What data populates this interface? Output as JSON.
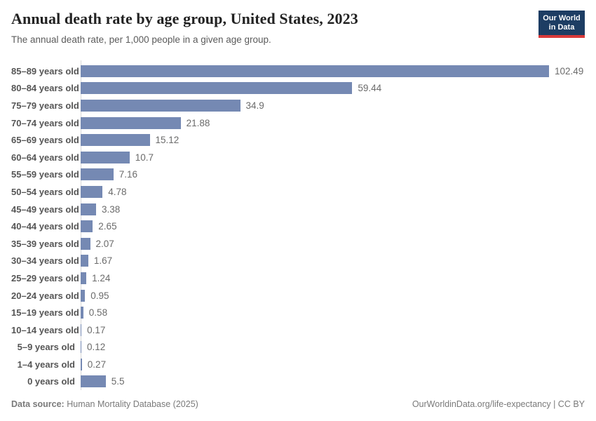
{
  "header": {
    "title": "Annual death rate by age group, United States, 2023",
    "subtitle": "The annual death rate, per 1,000 people in a given age group.",
    "logo": {
      "line1": "Our World",
      "line2": "in Data",
      "background": "#1d3d63",
      "accent": "#d93a3a"
    }
  },
  "chart_data": {
    "type": "bar",
    "orientation": "horizontal",
    "title": "Annual death rate by age group, United States, 2023",
    "subtitle": "The annual death rate, per 1,000 people in a given age group.",
    "categories": [
      "85–89 years old",
      "80–84 years old",
      "75–79 years old",
      "70–74 years old",
      "65–69 years old",
      "60–64 years old",
      "55–59 years old",
      "50–54 years old",
      "45–49 years old",
      "40–44 years old",
      "35–39 years old",
      "30–34 years old",
      "25–29 years old",
      "20–24 years old",
      "15–19 years old",
      "10–14 years old",
      "5–9 years old",
      "1–4 years old",
      "0 years old"
    ],
    "values": [
      102.49,
      59.44,
      34.9,
      21.88,
      15.12,
      10.7,
      7.16,
      4.78,
      3.38,
      2.65,
      2.07,
      1.67,
      1.24,
      0.95,
      0.58,
      0.17,
      0.12,
      0.27,
      5.5
    ],
    "value_labels": [
      "102.49",
      "59.44",
      "34.9",
      "21.88",
      "15.12",
      "10.7",
      "7.16",
      "4.78",
      "3.38",
      "2.65",
      "2.07",
      "1.67",
      "1.24",
      "0.95",
      "0.58",
      "0.17",
      "0.12",
      "0.27",
      "5.5"
    ],
    "xlim": [
      0,
      102.49
    ],
    "bar_color": "#7589b3",
    "grid": false,
    "legend": "none",
    "xlabel": "",
    "ylabel": ""
  },
  "footer": {
    "datasource_label": "Data source:",
    "datasource_value": "Human Mortality Database (2025)",
    "attribution": "OurWorldinData.org/life-expectancy | CC BY"
  }
}
